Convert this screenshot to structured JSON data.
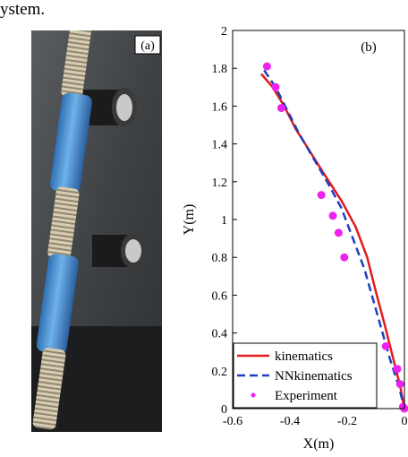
{
  "caption_fragment": "ystem.",
  "panel_a": {
    "label": "(a)"
  },
  "chart_data": {
    "type": "line",
    "panel_label": "(b)",
    "xlabel": "X(m)",
    "ylabel": "Y(m)",
    "xlim": [
      -0.6,
      0
    ],
    "ylim": [
      0,
      2
    ],
    "xticks": [
      -0.6,
      -0.4,
      -0.2,
      0
    ],
    "xtick_labels": [
      "-0.6",
      "-0.4",
      "-0.2",
      "0"
    ],
    "yticks": [
      0,
      0.2,
      0.4,
      0.6,
      0.8,
      1,
      1.2,
      1.4,
      1.6,
      1.8,
      2
    ],
    "ytick_labels": [
      "0",
      "0.2",
      "0.4",
      "0.6",
      "0.8",
      "1",
      "1.2",
      "1.4",
      "1.6",
      "1.8",
      "2"
    ],
    "legend_position": "bottom-left",
    "grid": false,
    "series": [
      {
        "name": "kinematics",
        "style": "solid",
        "color": "#e41a1c",
        "x": [
          -0.5,
          -0.46,
          -0.42,
          -0.38,
          -0.33,
          -0.28,
          -0.22,
          -0.17,
          -0.13,
          -0.1,
          -0.07,
          -0.04,
          -0.015,
          0
        ],
        "y": [
          1.77,
          1.7,
          1.6,
          1.48,
          1.36,
          1.24,
          1.1,
          0.96,
          0.8,
          0.62,
          0.45,
          0.27,
          0.12,
          0
        ]
      },
      {
        "name": "NNkinematics",
        "style": "dashed",
        "color": "#1f3fbf",
        "x": [
          -0.49,
          -0.45,
          -0.41,
          -0.37,
          -0.32,
          -0.27,
          -0.22,
          -0.18,
          -0.14,
          -0.11,
          -0.08,
          -0.05,
          -0.02,
          0
        ],
        "y": [
          1.79,
          1.7,
          1.58,
          1.46,
          1.33,
          1.2,
          1.06,
          0.9,
          0.74,
          0.58,
          0.42,
          0.26,
          0.12,
          0
        ]
      },
      {
        "name": "Experiment",
        "style": "markers",
        "color": "#ee22ee",
        "x": [
          -0.48,
          -0.45,
          -0.43,
          -0.29,
          -0.25,
          -0.23,
          -0.21,
          -0.065,
          -0.025,
          -0.015,
          -0.005,
          0.0
        ],
        "y": [
          1.81,
          1.7,
          1.59,
          1.13,
          1.02,
          0.93,
          0.8,
          0.33,
          0.21,
          0.13,
          0.01,
          0.0
        ]
      }
    ]
  }
}
